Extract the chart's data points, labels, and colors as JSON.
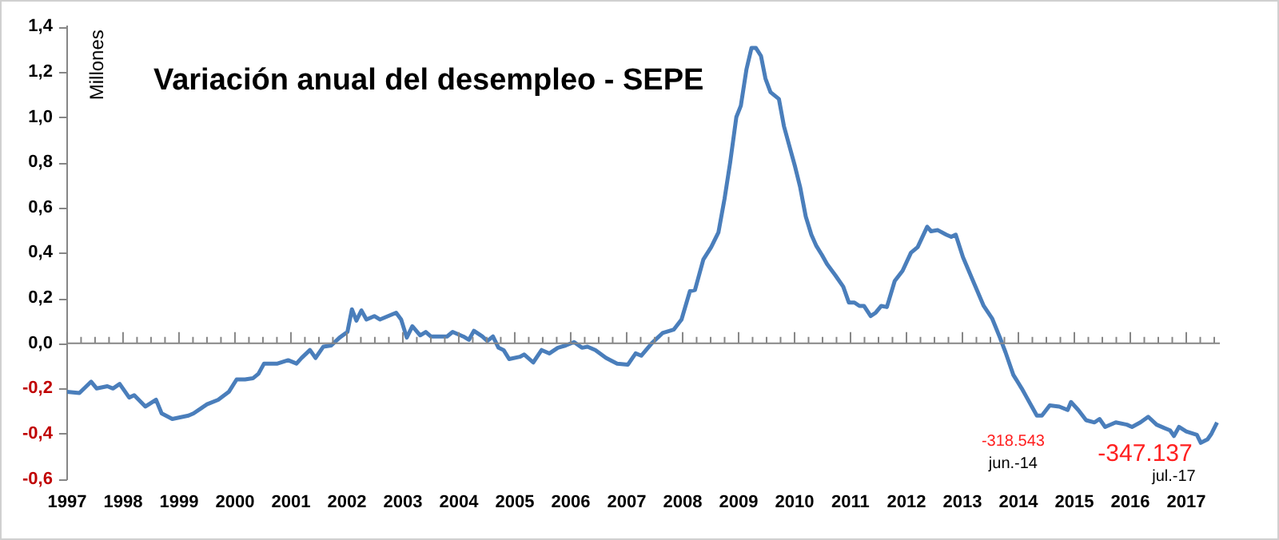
{
  "chart_data": {
    "type": "line",
    "title": "Variación anual del desempleo - SEPE",
    "ylabel": "Millones",
    "series": [
      {
        "color": "#4a7ebb",
        "x": [
          1997.0,
          1997.22,
          1997.43,
          1997.53,
          1997.72,
          1997.82,
          1997.94,
          1998.11,
          1998.2,
          1998.4,
          1998.59,
          1998.69,
          1998.88,
          1999.17,
          1999.26,
          1999.5,
          1999.7,
          1999.89,
          2000.03,
          2000.18,
          2000.32,
          2000.42,
          2000.52,
          2000.76,
          2000.95,
          2001.1,
          2001.19,
          2001.34,
          2001.44,
          2001.58,
          2001.72,
          2001.87,
          2002.01,
          2002.09,
          2002.17,
          2002.26,
          2002.35,
          2002.49,
          2002.59,
          2002.88,
          2002.97,
          2003.07,
          2003.17,
          2003.31,
          2003.41,
          2003.5,
          2003.79,
          2003.89,
          2004.08,
          2004.18,
          2004.27,
          2004.42,
          2004.51,
          2004.61,
          2004.71,
          2004.8,
          2004.9,
          2005.09,
          2005.17,
          2005.33,
          2005.48,
          2005.62,
          2005.77,
          2005.91,
          2006.06,
          2006.2,
          2006.3,
          2006.44,
          2006.63,
          2006.83,
          2007.02,
          2007.16,
          2007.26,
          2007.45,
          2007.64,
          2007.84,
          2007.98,
          2008.13,
          2008.22,
          2008.37,
          2008.51,
          2008.64,
          2008.75,
          2008.85,
          2008.96,
          2009.04,
          2009.14,
          2009.23,
          2009.31,
          2009.4,
          2009.48,
          2009.57,
          2009.72,
          2009.81,
          2009.91,
          2010.01,
          2010.1,
          2010.2,
          2010.3,
          2010.39,
          2010.49,
          2010.58,
          2010.73,
          2010.87,
          2010.97,
          2011.07,
          2011.16,
          2011.24,
          2011.36,
          2011.45,
          2011.55,
          2011.65,
          2011.79,
          2011.93,
          2012.08,
          2012.2,
          2012.37,
          2012.44,
          2012.56,
          2012.71,
          2012.8,
          2012.88,
          2013.01,
          2013.19,
          2013.38,
          2013.53,
          2013.67,
          2013.77,
          2013.91,
          2014.06,
          2014.15,
          2014.33,
          2014.42,
          2014.56,
          2014.73,
          2014.88,
          2014.94,
          2015.07,
          2015.21,
          2015.36,
          2015.45,
          2015.55,
          2015.74,
          2015.94,
          2016.03,
          2016.18,
          2016.32,
          2016.47,
          2016.61,
          2016.71,
          2016.78,
          2016.87,
          2017.0,
          2017.19,
          2017.26,
          2017.38,
          2017.45,
          2017.55
        ],
        "values": [
          -0.215,
          -0.22,
          -0.17,
          -0.2,
          -0.19,
          -0.2,
          -0.18,
          -0.24,
          -0.23,
          -0.28,
          -0.25,
          -0.31,
          -0.335,
          -0.32,
          -0.31,
          -0.27,
          -0.25,
          -0.215,
          -0.16,
          -0.16,
          -0.155,
          -0.135,
          -0.09,
          -0.09,
          -0.075,
          -0.09,
          -0.065,
          -0.03,
          -0.065,
          -0.015,
          -0.01,
          0.025,
          0.05,
          0.15,
          0.1,
          0.145,
          0.105,
          0.12,
          0.105,
          0.135,
          0.105,
          0.025,
          0.075,
          0.035,
          0.05,
          0.03,
          0.03,
          0.05,
          0.03,
          0.015,
          0.055,
          0.03,
          0.01,
          0.03,
          -0.02,
          -0.03,
          -0.07,
          -0.06,
          -0.05,
          -0.085,
          -0.03,
          -0.045,
          -0.02,
          -0.01,
          0.005,
          -0.02,
          -0.015,
          -0.03,
          -0.065,
          -0.09,
          -0.095,
          -0.045,
          -0.055,
          0.0,
          0.045,
          0.06,
          0.105,
          0.23,
          0.235,
          0.37,
          0.425,
          0.49,
          0.64,
          0.8,
          1.0,
          1.05,
          1.21,
          1.305,
          1.305,
          1.27,
          1.17,
          1.11,
          1.08,
          0.96,
          0.87,
          0.78,
          0.69,
          0.56,
          0.48,
          0.43,
          0.39,
          0.35,
          0.3,
          0.25,
          0.18,
          0.18,
          0.165,
          0.165,
          0.12,
          0.135,
          0.165,
          0.16,
          0.275,
          0.32,
          0.4,
          0.425,
          0.515,
          0.495,
          0.5,
          0.48,
          0.47,
          0.48,
          0.38,
          0.275,
          0.165,
          0.11,
          0.025,
          -0.04,
          -0.14,
          -0.2,
          -0.24,
          -0.32,
          -0.32,
          -0.275,
          -0.28,
          -0.295,
          -0.26,
          -0.295,
          -0.34,
          -0.35,
          -0.335,
          -0.37,
          -0.35,
          -0.36,
          -0.37,
          -0.35,
          -0.325,
          -0.36,
          -0.375,
          -0.385,
          -0.41,
          -0.37,
          -0.39,
          -0.405,
          -0.44,
          -0.425,
          -0.4,
          -0.35
        ]
      }
    ],
    "xlim": [
      1997,
      2017.6
    ],
    "xticks": [
      1997,
      {
        "value": 1997.25,
        "label": null
      },
      {
        "value": 1997.5,
        "label": null
      },
      {
        "value": 1997.75,
        "label": null
      },
      1998,
      {
        "value": 1998.25,
        "label": null
      },
      {
        "value": 1998.5,
        "label": null
      },
      {
        "value": 1998.75,
        "label": null
      },
      1999,
      {
        "value": 1999.25,
        "label": null
      },
      {
        "value": 1999.5,
        "label": null
      },
      {
        "value": 1999.75,
        "label": null
      },
      2000,
      {
        "value": 2000.25,
        "label": null
      },
      {
        "value": 2000.5,
        "label": null
      },
      {
        "value": 2000.75,
        "label": null
      },
      2001,
      {
        "value": 2001.25,
        "label": null
      },
      {
        "value": 2001.5,
        "label": null
      },
      {
        "value": 2001.75,
        "label": null
      },
      2002,
      {
        "value": 2002.25,
        "label": null
      },
      {
        "value": 2002.5,
        "label": null
      },
      {
        "value": 2002.75,
        "label": null
      },
      2003,
      {
        "value": 2003.25,
        "label": null
      },
      {
        "value": 2003.5,
        "label": null
      },
      {
        "value": 2003.75,
        "label": null
      },
      2004,
      {
        "value": 2004.25,
        "label": null
      },
      {
        "value": 2004.5,
        "label": null
      },
      {
        "value": 2004.75,
        "label": null
      },
      2005,
      {
        "value": 2005.25,
        "label": null
      },
      {
        "value": 2005.5,
        "label": null
      },
      {
        "value": 2005.75,
        "label": null
      },
      2006,
      {
        "value": 2006.25,
        "label": null
      },
      {
        "value": 2006.5,
        "label": null
      },
      {
        "value": 2006.75,
        "label": null
      },
      2007,
      {
        "value": 2007.25,
        "label": null
      },
      {
        "value": 2007.5,
        "label": null
      },
      {
        "value": 2007.75,
        "label": null
      },
      2008,
      {
        "value": 2008.25,
        "label": null
      },
      {
        "value": 2008.5,
        "label": null
      },
      {
        "value": 2008.75,
        "label": null
      },
      2009,
      {
        "value": 2009.25,
        "label": null
      },
      {
        "value": 2009.5,
        "label": null
      },
      {
        "value": 2009.75,
        "label": null
      },
      2010,
      {
        "value": 2010.25,
        "label": null
      },
      {
        "value": 2010.5,
        "label": null
      },
      {
        "value": 2010.75,
        "label": null
      },
      2011,
      {
        "value": 2011.25,
        "label": null
      },
      {
        "value": 2011.5,
        "label": null
      },
      {
        "value": 2011.75,
        "label": null
      },
      2012,
      {
        "value": 2012.25,
        "label": null
      },
      {
        "value": 2012.5,
        "label": null
      },
      {
        "value": 2012.75,
        "label": null
      },
      2013,
      {
        "value": 2013.25,
        "label": null
      },
      {
        "value": 2013.5,
        "label": null
      },
      {
        "value": 2013.75,
        "label": null
      },
      2014,
      {
        "value": 2014.25,
        "label": null
      },
      {
        "value": 2014.5,
        "label": null
      },
      {
        "value": 2014.75,
        "label": null
      },
      2015,
      {
        "value": 2015.25,
        "label": null
      },
      {
        "value": 2015.5,
        "label": null
      },
      {
        "value": 2015.75,
        "label": null
      },
      2016,
      {
        "value": 2016.25,
        "label": null
      },
      {
        "value": 2016.5,
        "label": null
      },
      {
        "value": 2016.75,
        "label": null
      },
      2017,
      {
        "value": 2017.25,
        "label": null
      },
      {
        "value": 2017.5,
        "label": null
      }
    ],
    "ylim": [
      -0.6,
      1.4
    ],
    "yticks": [
      {
        "value": -0.6,
        "label": "-0,6"
      },
      {
        "value": -0.4,
        "label": "-0,4"
      },
      {
        "value": -0.2,
        "label": "-0,2"
      },
      {
        "value": 0,
        "label": "0,0"
      },
      {
        "value": 0.2,
        "label": "0,2"
      },
      {
        "value": 0.4,
        "label": "0,4"
      },
      {
        "value": 0.6,
        "label": "0,6"
      },
      {
        "value": 0.8,
        "label": "0,8"
      },
      {
        "value": 1.0,
        "label": "1,0"
      },
      {
        "value": 1.2,
        "label": "1,2"
      },
      {
        "value": 1.4,
        "label": "1,4"
      }
    ],
    "annotations": [
      {
        "text": "-318.543",
        "x": 2014.42,
        "y": -0.32
      },
      "jun.-14",
      {
        "text": "-347.137",
        "x": 2017.55,
        "y": -0.35
      },
      "jul.-17"
    ],
    "ref_lines": [
      {
        "axis": "y",
        "value": 0,
        "color": "#868686",
        "line_style": "solid"
      }
    ],
    "grid": false,
    "legend": false,
    "marker": "none",
    "line_style": "solid"
  }
}
